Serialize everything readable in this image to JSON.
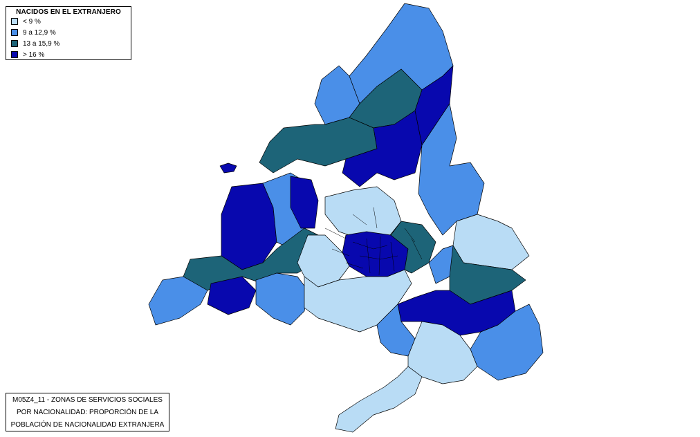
{
  "legend": {
    "title": "NACIDOS EN EL EXTRANJERO",
    "items": [
      {
        "label": "< 9 %",
        "color": "#b9dcf5"
      },
      {
        "label": "9 a 12,9 %",
        "color": "#4a8fe8"
      },
      {
        "label": "13 a 15,9 %",
        "color": "#1d6478"
      },
      {
        "label": "> 16 %",
        "color": "#0808ae"
      }
    ]
  },
  "caption": {
    "line1": "M05Z4_11 - ZONAS DE SERVICIOS SOCIALES",
    "line2": "POR NACIONALIDAD: PROPORCIÓN DE LA",
    "line3": "POBLACIÓN DE NACIONALIDAD EXTRANJERA"
  },
  "colors": {
    "outline": "#000000",
    "background": "#ffffff"
  }
}
